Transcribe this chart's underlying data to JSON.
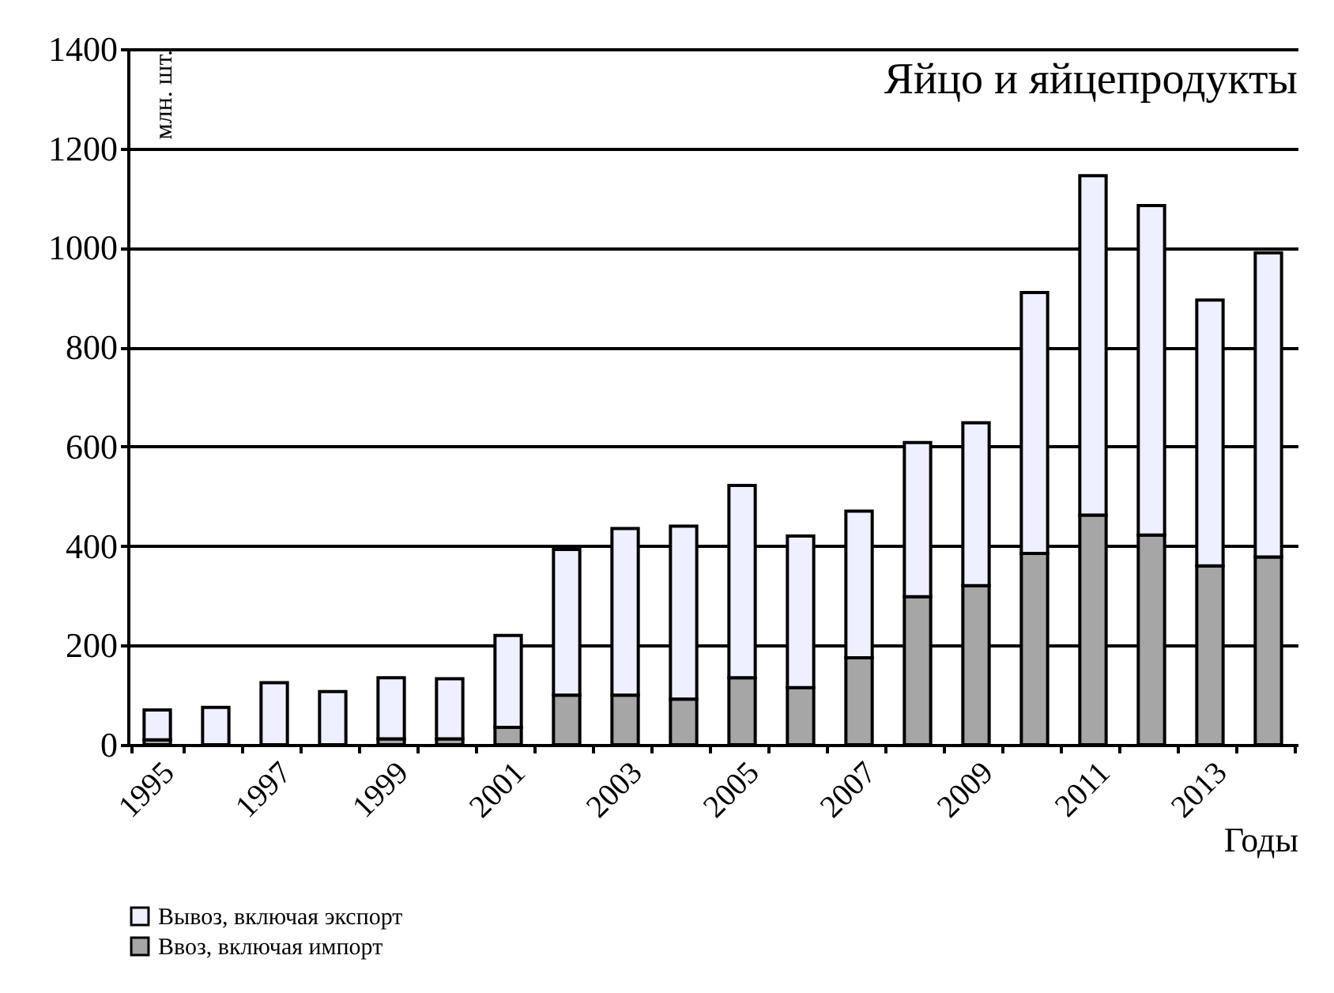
{
  "chart_data": {
    "type": "bar",
    "title": "Яйцо и яйцепродукты",
    "xlabel": "Годы",
    "ylabel": "млн. шт.",
    "stacked": true,
    "categories": [
      "1995",
      null,
      "1997",
      null,
      "1999",
      null,
      "2001",
      null,
      "2003",
      null,
      "2005",
      null,
      "2007",
      null,
      "2009",
      null,
      "2011",
      null,
      "2013",
      null
    ],
    "series": [
      {
        "name": "Ввоз, включая импорт",
        "color": "#a6a6a6",
        "values": [
          10,
          null,
          null,
          null,
          12,
          12,
          35,
          100,
          100,
          92,
          135,
          115,
          175,
          298,
          320,
          385,
          462,
          422,
          360,
          378
        ]
      },
      {
        "name": "Вывоз, включая экспорт",
        "color": "#eef0ff",
        "values": [
          60,
          75,
          125,
          107,
          123,
          121,
          185,
          293,
          335,
          348,
          387,
          305,
          295,
          310,
          328,
          525,
          683,
          663,
          535,
          612
        ]
      }
    ],
    "ylim": [
      0,
      1400
    ],
    "yticks": [
      0,
      200,
      400,
      600,
      800,
      1000,
      1200,
      1400
    ],
    "grid": "y",
    "legend": "bottom"
  }
}
